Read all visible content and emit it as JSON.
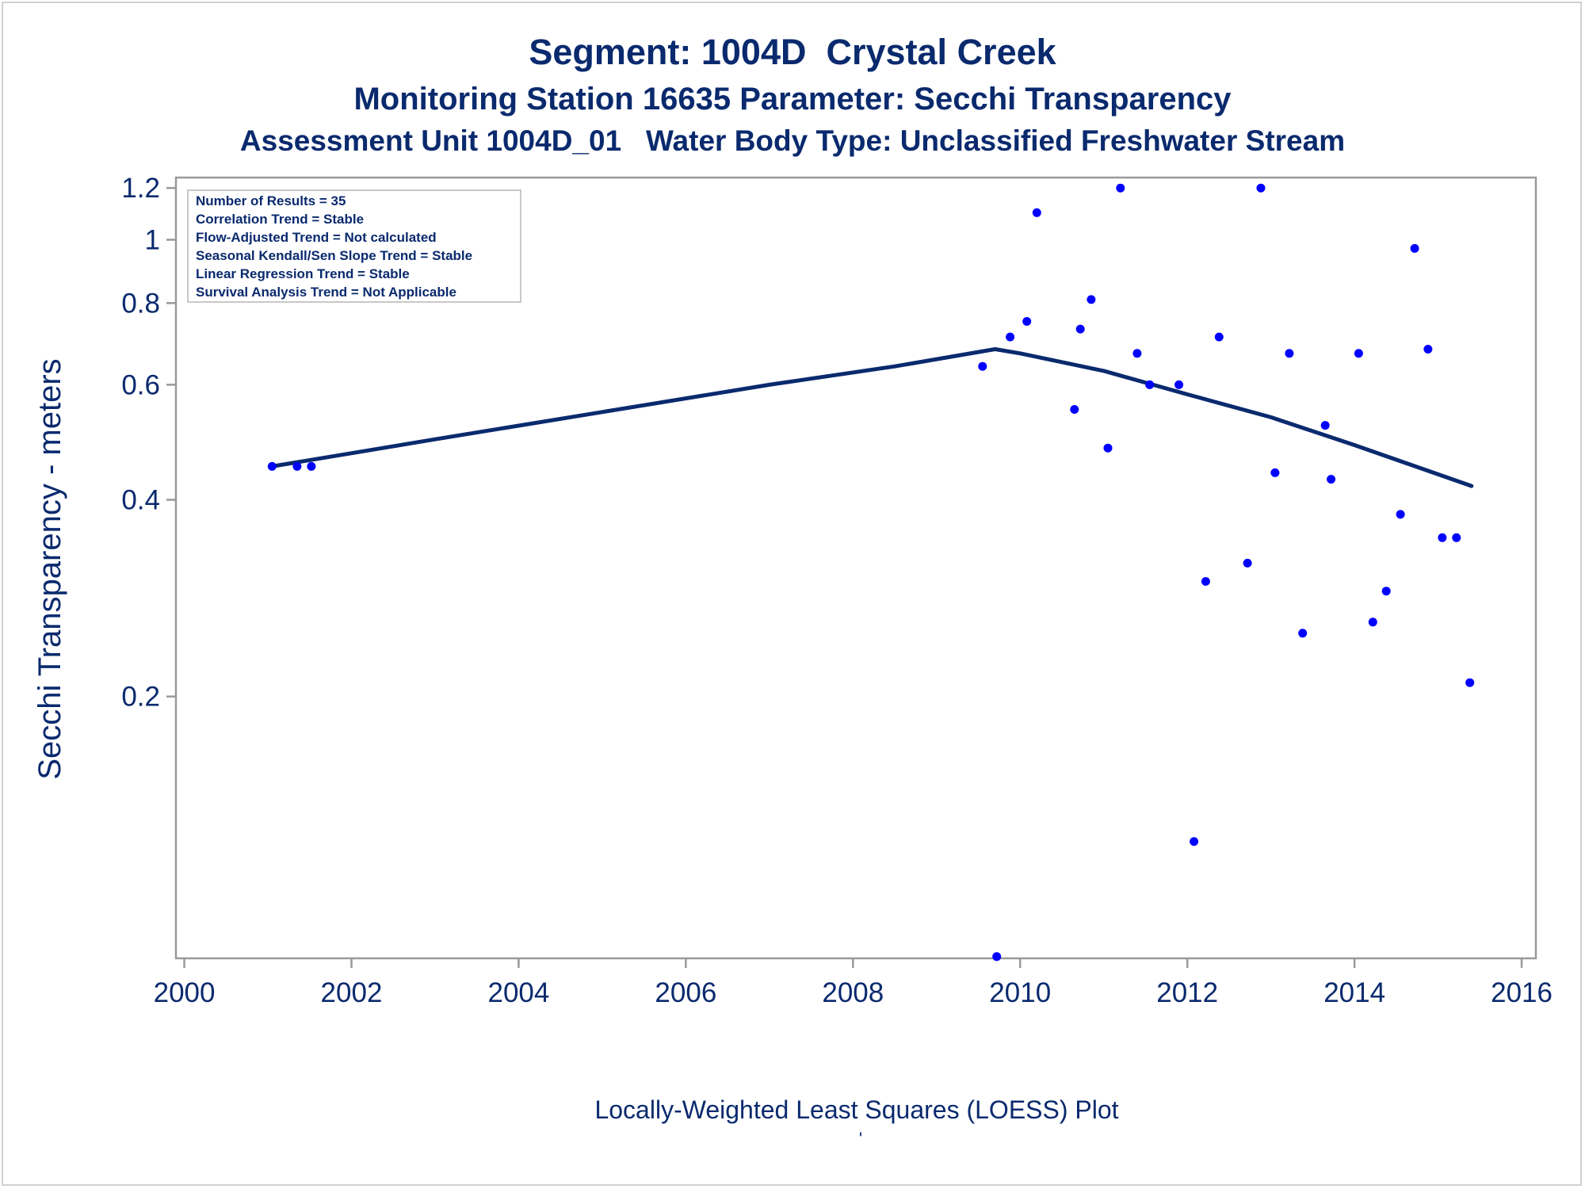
{
  "titles": {
    "line1": "Segment: 1004D  Crystal Creek",
    "line2": "Monitoring Station 16635 Parameter: Secchi Transparency",
    "line3": "Assessment Unit 1004D_01   Water Body Type: Unclassified Freshwater Stream"
  },
  "info_box": [
    "Number of Results = 35",
    "Correlation Trend = Stable",
    "Flow-Adjusted Trend = Not calculated",
    "Seasonal Kendall/Sen Slope Trend = Stable",
    "Linear Regression Trend = Stable",
    "Survival Analysis Trend = Not Applicable"
  ],
  "footnote_mark": "'",
  "colors": {
    "text": "#0a2a6e",
    "points": "#0000ff",
    "loess_line": "#0a2a6e",
    "frame": "#999999"
  },
  "chart_data": {
    "type": "scatter",
    "title": "Segment: 1004D  Crystal Creek",
    "xlabel": "Locally-Weighted Least Squares (LOESS) Plot",
    "ylabel": "Secchi Transparency - meters",
    "x_ticks": [
      2000,
      2002,
      2004,
      2006,
      2008,
      2010,
      2012,
      2014,
      2016
    ],
    "y_ticks": [
      0.2,
      0.4,
      0.6,
      0.8,
      1,
      1.2
    ],
    "y_tick_labels": [
      "0.2",
      "0.4",
      "0.6",
      "0.8",
      "1",
      "1.2"
    ],
    "y_scale": "log",
    "xlim": [
      1999.9,
      2016.17
    ],
    "ylim": [
      0.0795,
      1.245
    ],
    "grid": false,
    "series": [
      {
        "type": "scatter",
        "points": [
          {
            "x": 2001.05,
            "y": 0.45
          },
          {
            "x": 2001.35,
            "y": 0.45
          },
          {
            "x": 2001.52,
            "y": 0.45
          },
          {
            "x": 2009.55,
            "y": 0.64
          },
          {
            "x": 2009.72,
            "y": 0.08
          },
          {
            "x": 2009.88,
            "y": 0.71
          },
          {
            "x": 2010.08,
            "y": 0.75
          },
          {
            "x": 2010.2,
            "y": 1.1
          },
          {
            "x": 2010.65,
            "y": 0.55
          },
          {
            "x": 2010.72,
            "y": 0.73
          },
          {
            "x": 2010.85,
            "y": 0.81
          },
          {
            "x": 2011.05,
            "y": 0.48
          },
          {
            "x": 2011.2,
            "y": 1.2
          },
          {
            "x": 2011.4,
            "y": 0.67
          },
          {
            "x": 2011.55,
            "y": 0.6
          },
          {
            "x": 2011.9,
            "y": 0.6
          },
          {
            "x": 2012.08,
            "y": 0.12
          },
          {
            "x": 2012.22,
            "y": 0.3
          },
          {
            "x": 2012.38,
            "y": 0.71
          },
          {
            "x": 2012.72,
            "y": 0.32
          },
          {
            "x": 2012.88,
            "y": 1.2
          },
          {
            "x": 2013.05,
            "y": 0.44
          },
          {
            "x": 2013.22,
            "y": 0.67
          },
          {
            "x": 2013.38,
            "y": 0.25
          },
          {
            "x": 2013.65,
            "y": 0.52
          },
          {
            "x": 2013.72,
            "y": 0.43
          },
          {
            "x": 2014.05,
            "y": 0.67
          },
          {
            "x": 2014.22,
            "y": 0.26
          },
          {
            "x": 2014.38,
            "y": 0.29
          },
          {
            "x": 2014.55,
            "y": 0.38
          },
          {
            "x": 2014.72,
            "y": 0.97
          },
          {
            "x": 2014.88,
            "y": 0.68
          },
          {
            "x": 2015.05,
            "y": 0.35
          },
          {
            "x": 2015.22,
            "y": 0.35
          },
          {
            "x": 2015.38,
            "y": 0.21
          }
        ]
      },
      {
        "type": "line",
        "points": [
          {
            "x": 2001.05,
            "y": 0.45
          },
          {
            "x": 2003.0,
            "y": 0.495
          },
          {
            "x": 2005.0,
            "y": 0.545
          },
          {
            "x": 2007.0,
            "y": 0.6
          },
          {
            "x": 2008.5,
            "y": 0.64
          },
          {
            "x": 2009.7,
            "y": 0.68
          },
          {
            "x": 2010.0,
            "y": 0.67
          },
          {
            "x": 2011.0,
            "y": 0.63
          },
          {
            "x": 2012.0,
            "y": 0.58
          },
          {
            "x": 2013.0,
            "y": 0.535
          },
          {
            "x": 2014.0,
            "y": 0.485
          },
          {
            "x": 2015.4,
            "y": 0.42
          }
        ]
      }
    ]
  }
}
